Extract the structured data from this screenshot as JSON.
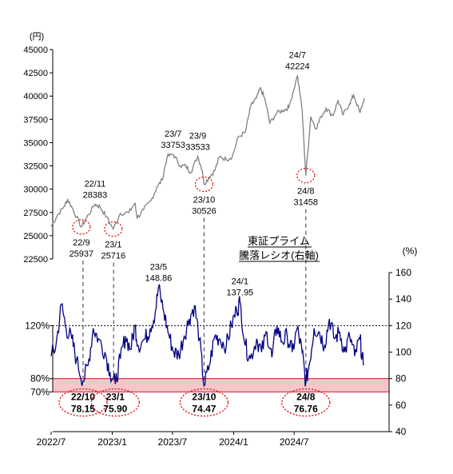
{
  "chart_data": [
    {
      "type": "line",
      "panel": "upper",
      "unit_label": "(円)",
      "y_axis_side": "left",
      "ylim": [
        22500,
        45000
      ],
      "y_ticks": [
        "45000",
        "42500",
        "40000",
        "37500",
        "35000",
        "32500",
        "30000",
        "27500",
        "25000",
        "22500"
      ],
      "y_tick_values": [
        45000,
        42500,
        40000,
        37500,
        35000,
        32500,
        30000,
        27500,
        25000,
        22500
      ],
      "line_color": "#808080",
      "x_range": [
        "2022-07",
        "2025-02"
      ],
      "series": [
        {
          "points": [
            [
              "2022-07-01",
              26000
            ],
            [
              "2022-07-20",
              27200
            ],
            [
              "2022-08-10",
              28200
            ],
            [
              "2022-08-20",
              28900
            ],
            [
              "2022-09-05",
              27800
            ],
            [
              "2022-09-30",
              25937
            ],
            [
              "2022-10-15",
              26900
            ],
            [
              "2022-11-10",
              28383
            ],
            [
              "2022-11-25",
              28100
            ],
            [
              "2022-12-15",
              27000
            ],
            [
              "2023-01-04",
              25716
            ],
            [
              "2023-01-25",
              27400
            ],
            [
              "2023-02-20",
              27500
            ],
            [
              "2023-03-10",
              28500
            ],
            [
              "2023-03-17",
              26900
            ],
            [
              "2023-04-05",
              27800
            ],
            [
              "2023-04-28",
              28800
            ],
            [
              "2023-05-15",
              30200
            ],
            [
              "2023-05-31",
              31000
            ],
            [
              "2023-06-15",
              33500
            ],
            [
              "2023-07-03",
              33753
            ],
            [
              "2023-07-25",
              32500
            ],
            [
              "2023-08-10",
              32500
            ],
            [
              "2023-08-25",
              31800
            ],
            [
              "2023-09-15",
              33533
            ],
            [
              "2023-09-29",
              32000
            ],
            [
              "2023-10-04",
              30526
            ],
            [
              "2023-10-20",
              31300
            ],
            [
              "2023-11-05",
              32000
            ],
            [
              "2023-11-20",
              33500
            ],
            [
              "2023-12-10",
              33200
            ],
            [
              "2023-12-28",
              33500
            ],
            [
              "2024-01-15",
              35600
            ],
            [
              "2024-02-05",
              36100
            ],
            [
              "2024-02-22",
              39000
            ],
            [
              "2024-03-10",
              39800
            ],
            [
              "2024-03-22",
              40900
            ],
            [
              "2024-04-05",
              39500
            ],
            [
              "2024-04-19",
              37100
            ],
            [
              "2024-05-10",
              38200
            ],
            [
              "2024-05-31",
              38500
            ],
            [
              "2024-06-15",
              38800
            ],
            [
              "2024-07-11",
              42224
            ],
            [
              "2024-07-25",
              38500
            ],
            [
              "2024-08-05",
              31458
            ],
            [
              "2024-08-20",
              37800
            ],
            [
              "2024-09-05",
              36500
            ],
            [
              "2024-09-20",
              37800
            ],
            [
              "2024-10-05",
              38700
            ],
            [
              "2024-10-25",
              37900
            ],
            [
              "2024-11-10",
              39500
            ],
            [
              "2024-11-25",
              38000
            ],
            [
              "2024-12-15",
              39200
            ],
            [
              "2024-12-27",
              40100
            ],
            [
              "2025-01-15",
              38200
            ],
            [
              "2025-01-28",
              39800
            ]
          ]
        }
      ],
      "annotations": [
        {
          "date": "2022-09-30",
          "value": 25937,
          "period": "22/9",
          "value_text": "25937",
          "circle": true
        },
        {
          "date": "2022-11-10",
          "value": 28383,
          "period": "22/11",
          "value_text": "28383",
          "circle": false
        },
        {
          "date": "2023-01-04",
          "value": 25716,
          "period": "23/1",
          "value_text": "25716",
          "circle": true
        },
        {
          "date": "2023-07-03",
          "value": 33753,
          "period": "23/7",
          "value_text": "33753",
          "circle": false
        },
        {
          "date": "2023-09-15",
          "value": 33533,
          "period": "23/9",
          "value_text": "33533",
          "circle": false
        },
        {
          "date": "2023-10-04",
          "value": 30526,
          "period": "23/10",
          "value_text": "30526",
          "circle": true
        },
        {
          "date": "2024-07-11",
          "value": 42224,
          "period": "24/7",
          "value_text": "42224",
          "circle": false
        },
        {
          "date": "2024-08-05",
          "value": 31458,
          "period": "24/8",
          "value_text": "31458",
          "circle": true
        }
      ]
    },
    {
      "type": "line",
      "panel": "lower",
      "title_line1": "東証プライム",
      "title_line2": "騰落レシオ(右軸)",
      "unit_label": "(%)",
      "y_axis_side": "right",
      "ylim": [
        40,
        160
      ],
      "y_ticks": [
        "160",
        "140",
        "120",
        "100",
        "80",
        "60",
        "40"
      ],
      "y_tick_values": [
        160,
        140,
        120,
        100,
        80,
        60,
        40
      ],
      "left_labels": [
        {
          "text": "120%",
          "value": 120
        },
        {
          "text": "80%",
          "value": 80
        },
        {
          "text": "70%",
          "value": 70
        }
      ],
      "reference_line": 120,
      "band": [
        70,
        80
      ],
      "band_color": "#f7c6c9",
      "line_color": "#000080",
      "x_ticks": [
        "2022/7",
        "2023/1",
        "2023/7",
        "2024/1",
        "2024/7"
      ],
      "x_tick_dates": [
        "2022-07-01",
        "2023-01-01",
        "2023-07-01",
        "2024-01-01",
        "2024-07-01"
      ],
      "x_range": [
        "2022-07",
        "2025-02"
      ],
      "series": [
        {
          "points": [
            [
              "2022-07-01",
              97
            ],
            [
              "2022-07-15",
              104
            ],
            [
              "2022-08-01",
              136
            ],
            [
              "2022-08-15",
              118
            ],
            [
              "2022-09-01",
              110
            ],
            [
              "2022-09-15",
              94
            ],
            [
              "2022-10-05",
              78.15
            ],
            [
              "2022-10-20",
              90
            ],
            [
              "2022-11-05",
              118
            ],
            [
              "2022-11-20",
              110
            ],
            [
              "2022-12-10",
              100
            ],
            [
              "2022-12-25",
              85
            ],
            [
              "2023-01-10",
              75.9
            ],
            [
              "2023-01-25",
              95
            ],
            [
              "2023-02-10",
              112
            ],
            [
              "2023-02-25",
              102
            ],
            [
              "2023-03-10",
              120
            ],
            [
              "2023-03-20",
              105
            ],
            [
              "2023-04-10",
              110
            ],
            [
              "2023-04-25",
              118
            ],
            [
              "2023-05-10",
              130
            ],
            [
              "2023-05-20",
              148.86
            ],
            [
              "2023-06-05",
              130
            ],
            [
              "2023-06-20",
              113
            ],
            [
              "2023-07-05",
              100
            ],
            [
              "2023-07-20",
              98
            ],
            [
              "2023-08-05",
              112
            ],
            [
              "2023-08-20",
              125
            ],
            [
              "2023-09-05",
              135
            ],
            [
              "2023-09-20",
              110
            ],
            [
              "2023-10-04",
              74.47
            ],
            [
              "2023-10-20",
              90
            ],
            [
              "2023-11-05",
              112
            ],
            [
              "2023-11-20",
              110
            ],
            [
              "2023-12-10",
              105
            ],
            [
              "2023-12-25",
              120
            ],
            [
              "2024-01-10",
              132
            ],
            [
              "2024-01-20",
              137.95
            ],
            [
              "2024-02-05",
              105
            ],
            [
              "2024-02-20",
              95
            ],
            [
              "2024-03-10",
              110
            ],
            [
              "2024-03-25",
              100
            ],
            [
              "2024-04-10",
              115
            ],
            [
              "2024-04-25",
              96
            ],
            [
              "2024-05-10",
              120
            ],
            [
              "2024-05-25",
              108
            ],
            [
              "2024-06-10",
              112
            ],
            [
              "2024-06-25",
              100
            ],
            [
              "2024-07-10",
              118
            ],
            [
              "2024-07-25",
              100
            ],
            [
              "2024-08-05",
              76.76
            ],
            [
              "2024-08-15",
              90
            ],
            [
              "2024-08-30",
              118
            ],
            [
              "2024-09-15",
              115
            ],
            [
              "2024-09-30",
              105
            ],
            [
              "2024-10-15",
              125
            ],
            [
              "2024-10-30",
              110
            ],
            [
              "2024-11-15",
              115
            ],
            [
              "2024-11-30",
              100
            ],
            [
              "2024-12-15",
              112
            ],
            [
              "2024-12-30",
              97
            ],
            [
              "2025-01-15",
              110
            ],
            [
              "2025-01-25",
              90
            ]
          ]
        }
      ],
      "annotations": [
        {
          "date": "2022-10-05",
          "value": 78.15,
          "period": "22/10",
          "value_text": "78.15",
          "circle": true,
          "bold": true
        },
        {
          "date": "2023-01-10",
          "value": 75.9,
          "period": "23/1",
          "value_text": "75.90",
          "circle": true,
          "bold": true
        },
        {
          "date": "2023-05-20",
          "value": 148.86,
          "period": "23/5",
          "value_text": "148.86",
          "circle": false,
          "bold": false
        },
        {
          "date": "2023-10-04",
          "value": 74.47,
          "period": "23/10",
          "value_text": "74.47",
          "circle": true,
          "bold": true
        },
        {
          "date": "2024-01-20",
          "value": 137.95,
          "period": "24/1",
          "value_text": "137.95",
          "circle": false,
          "bold": false
        },
        {
          "date": "2024-08-05",
          "value": 76.76,
          "period": "24/8",
          "value_text": "76.76",
          "circle": true,
          "bold": true
        }
      ],
      "connector_dates": [
        "2022-10-05",
        "2023-01-05",
        "2023-10-04",
        "2024-08-05"
      ]
    }
  ]
}
